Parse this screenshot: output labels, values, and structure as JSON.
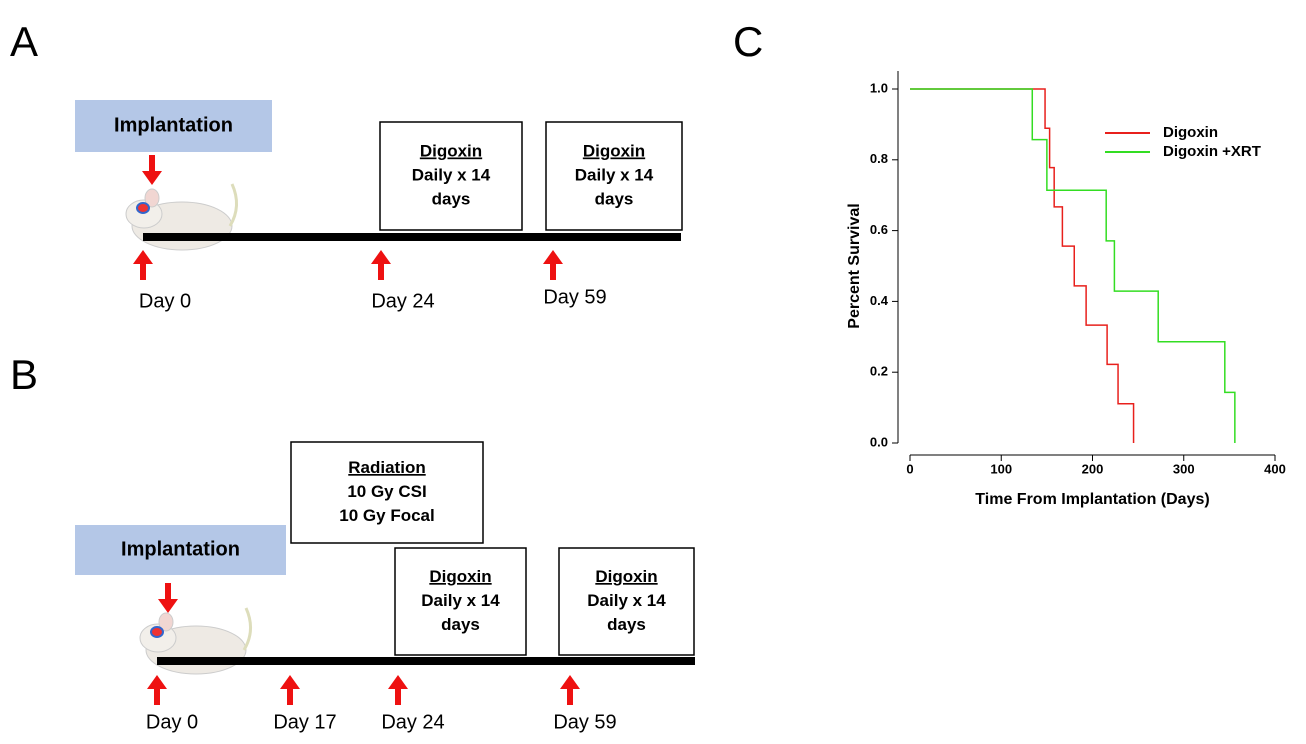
{
  "panel_a": {
    "label": "A",
    "implantation": "Implantation",
    "boxes": [
      {
        "title": "Digoxin",
        "lines": [
          "Daily x 14",
          "days"
        ]
      },
      {
        "title": "Digoxin",
        "lines": [
          "Daily x 14",
          "days"
        ]
      }
    ],
    "days": [
      "Day 0",
      "Day 24",
      "Day 59"
    ]
  },
  "panel_b": {
    "label": "B",
    "implantation": "Implantation",
    "radiation": {
      "title": "Radiation",
      "lines": [
        "10 Gy CSI",
        "10 Gy Focal"
      ]
    },
    "boxes": [
      {
        "title": "Digoxin",
        "lines": [
          "Daily x 14",
          "days"
        ]
      },
      {
        "title": "Digoxin",
        "lines": [
          "Daily x 14",
          "days"
        ]
      }
    ],
    "days": [
      "Day 0",
      "Day 17",
      "Day 24",
      "Day 59"
    ]
  },
  "chart_data": {
    "label": "C",
    "type": "line",
    "step": true,
    "xlabel": "Time From Implantation (Days)",
    "ylabel": "Percent Survival",
    "xlim": [
      0,
      400
    ],
    "xticks": [
      0,
      100,
      200,
      300,
      400
    ],
    "ylim": [
      0,
      1
    ],
    "yticks": [
      {
        "value": 0,
        "label": "0.0"
      },
      0.2,
      0.4,
      0.6,
      0.8,
      {
        "value": 1,
        "label": "1.0"
      }
    ],
    "legend": "upper right",
    "series": [
      {
        "name": "Digoxin",
        "color": "#e8201c",
        "x": [
          0,
          148,
          153,
          158,
          167,
          180,
          193,
          216,
          228,
          245
        ],
        "values": [
          1,
          0.889,
          0.778,
          0.667,
          0.556,
          0.444,
          0.333,
          0.222,
          0.111,
          0
        ]
      },
      {
        "name": "Digoxin +XRT",
        "color": "#33dd22",
        "x": [
          0,
          134,
          150,
          215,
          224,
          272,
          345,
          356
        ],
        "values": [
          1,
          0.857,
          0.714,
          0.571,
          0.429,
          0.286,
          0.143,
          0
        ]
      }
    ]
  }
}
